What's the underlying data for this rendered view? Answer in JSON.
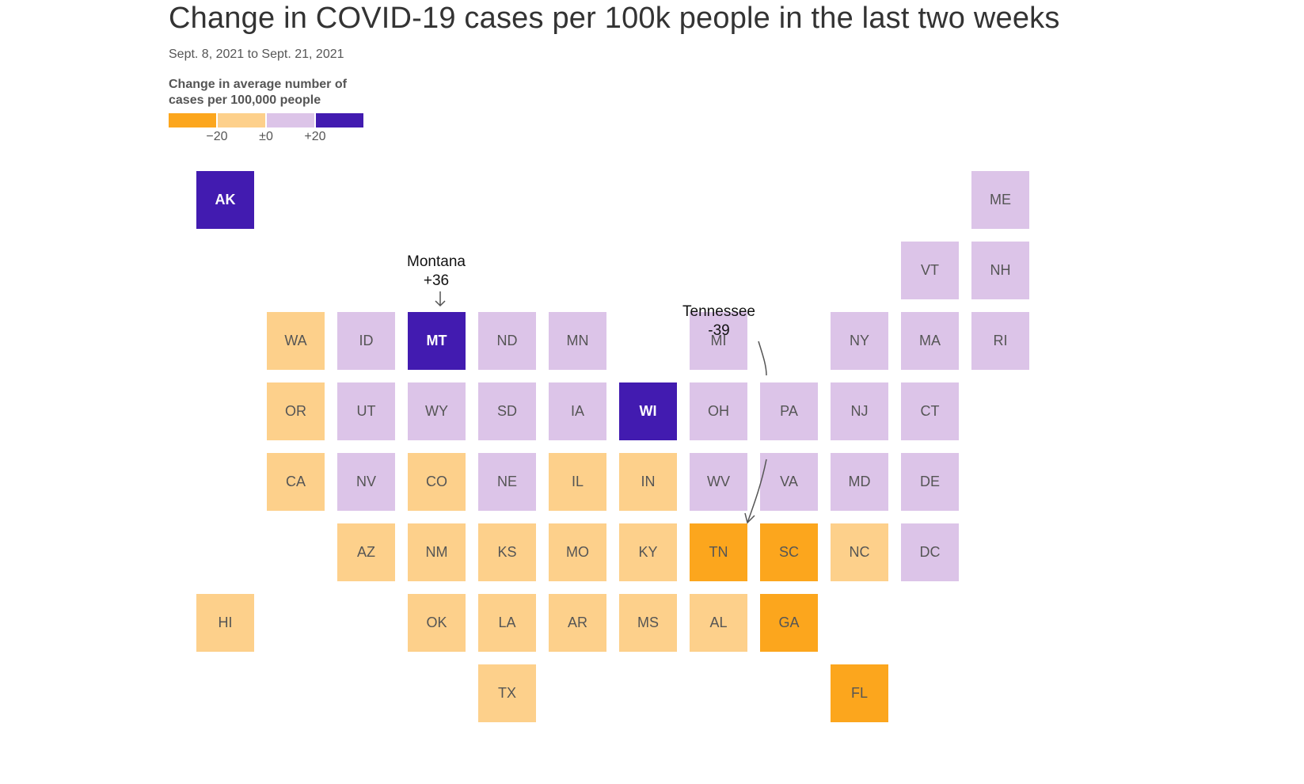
{
  "title": "Change in COVID-19 cases per 100k people in the last two weeks",
  "subtitle": "Sept. 8, 2021 to Sept. 21, 2021",
  "legend": {
    "title": "Change in average number of cases per 100,000 people",
    "colors": [
      "#fca61d",
      "#fdd08b",
      "#dcc4e8",
      "#421bb0"
    ],
    "ticks": [
      "−20",
      "±0",
      "+20"
    ]
  },
  "chart_data": {
    "type": "tile-grid-map",
    "categories": [
      "≤ −20",
      "−20 to 0",
      "0 to +20",
      "≥ +20"
    ],
    "states": [
      {
        "abbr": "AK",
        "category": 3
      },
      {
        "abbr": "ME",
        "category": 2
      },
      {
        "abbr": "VT",
        "category": 2
      },
      {
        "abbr": "NH",
        "category": 2
      },
      {
        "abbr": "WA",
        "category": 1
      },
      {
        "abbr": "ID",
        "category": 2
      },
      {
        "abbr": "MT",
        "category": 3
      },
      {
        "abbr": "ND",
        "category": 2
      },
      {
        "abbr": "MN",
        "category": 2
      },
      {
        "abbr": "MI",
        "category": 2
      },
      {
        "abbr": "NY",
        "category": 2
      },
      {
        "abbr": "MA",
        "category": 2
      },
      {
        "abbr": "RI",
        "category": 2
      },
      {
        "abbr": "OR",
        "category": 1
      },
      {
        "abbr": "UT",
        "category": 2
      },
      {
        "abbr": "WY",
        "category": 2
      },
      {
        "abbr": "SD",
        "category": 2
      },
      {
        "abbr": "IA",
        "category": 2
      },
      {
        "abbr": "WI",
        "category": 3
      },
      {
        "abbr": "OH",
        "category": 2
      },
      {
        "abbr": "PA",
        "category": 2
      },
      {
        "abbr": "NJ",
        "category": 2
      },
      {
        "abbr": "CT",
        "category": 2
      },
      {
        "abbr": "CA",
        "category": 1
      },
      {
        "abbr": "NV",
        "category": 2
      },
      {
        "abbr": "CO",
        "category": 1
      },
      {
        "abbr": "NE",
        "category": 2
      },
      {
        "abbr": "IL",
        "category": 1
      },
      {
        "abbr": "IN",
        "category": 1
      },
      {
        "abbr": "WV",
        "category": 2
      },
      {
        "abbr": "VA",
        "category": 2
      },
      {
        "abbr": "MD",
        "category": 2
      },
      {
        "abbr": "DE",
        "category": 2
      },
      {
        "abbr": "AZ",
        "category": 1
      },
      {
        "abbr": "NM",
        "category": 1
      },
      {
        "abbr": "KS",
        "category": 1
      },
      {
        "abbr": "MO",
        "category": 1
      },
      {
        "abbr": "KY",
        "category": 1
      },
      {
        "abbr": "TN",
        "category": 0
      },
      {
        "abbr": "SC",
        "category": 0
      },
      {
        "abbr": "NC",
        "category": 1
      },
      {
        "abbr": "DC",
        "category": 2
      },
      {
        "abbr": "HI",
        "category": 1
      },
      {
        "abbr": "OK",
        "category": 1
      },
      {
        "abbr": "LA",
        "category": 1
      },
      {
        "abbr": "AR",
        "category": 1
      },
      {
        "abbr": "MS",
        "category": 1
      },
      {
        "abbr": "AL",
        "category": 1
      },
      {
        "abbr": "GA",
        "category": 0
      },
      {
        "abbr": "TX",
        "category": 1
      },
      {
        "abbr": "FL",
        "category": 0
      }
    ],
    "annotations": [
      {
        "name": "Montana",
        "value": "+36"
      },
      {
        "name": "Tennessee",
        "value": "-39"
      }
    ]
  }
}
